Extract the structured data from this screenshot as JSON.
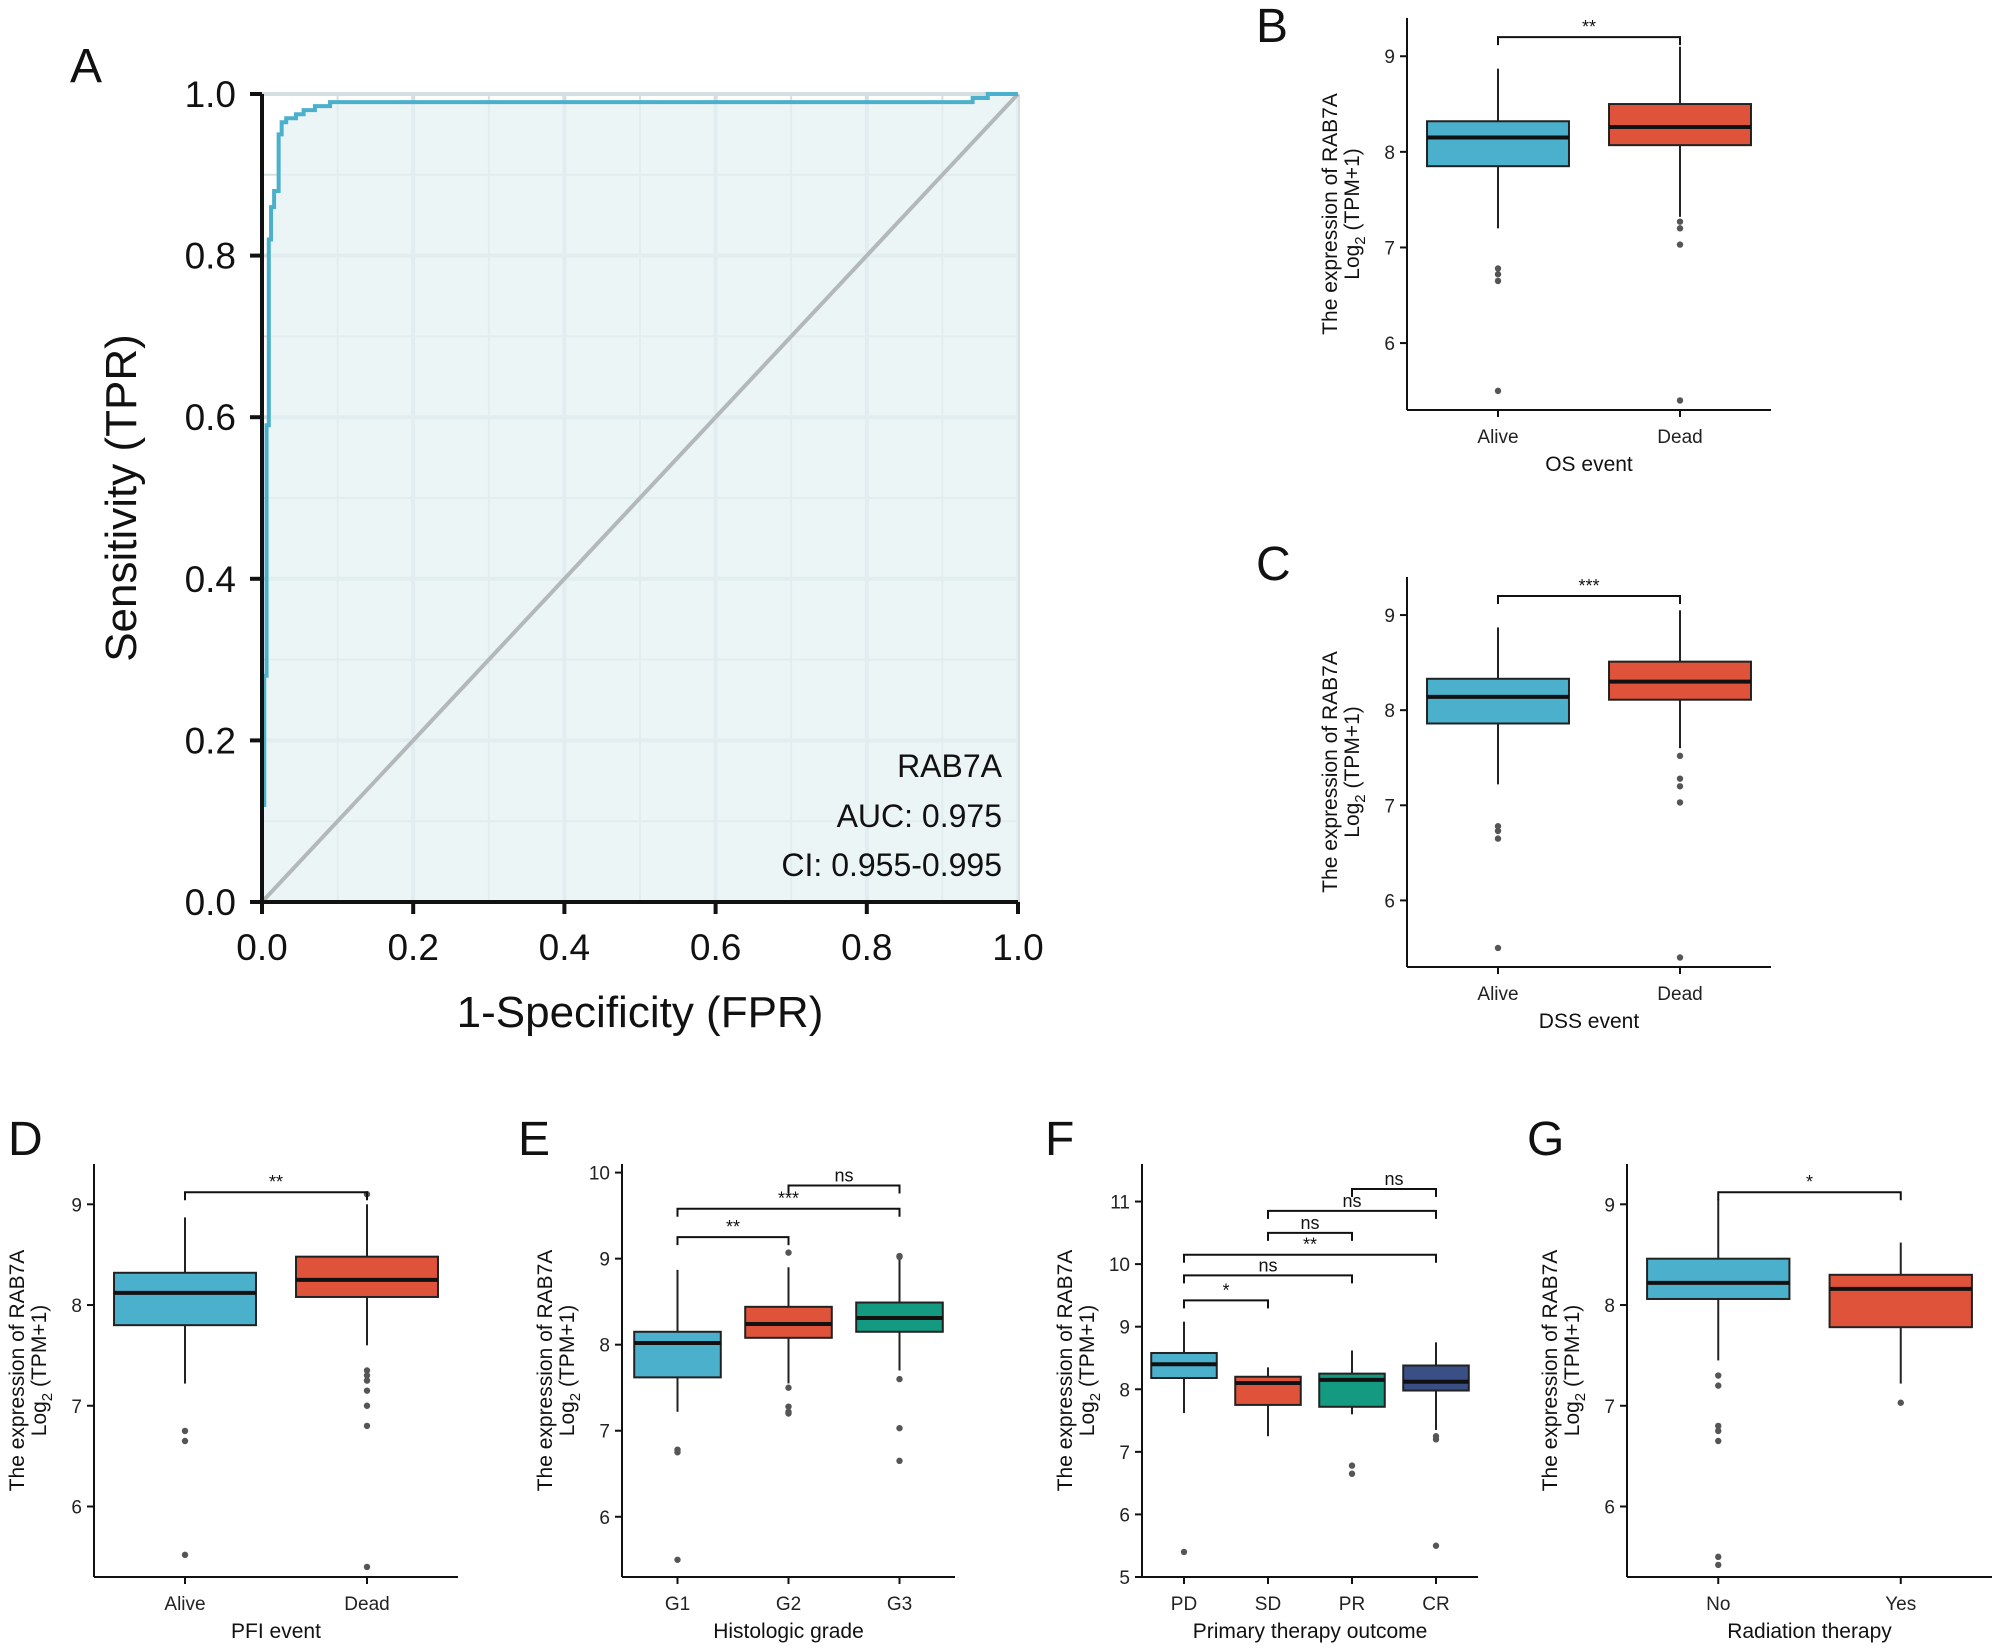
{
  "chart_data": [
    {
      "id": "A",
      "type": "line",
      "panel_label": "A",
      "xlabel": "1-Specificity (FPR)",
      "ylabel": "Sensitivity (TPR)",
      "xlim": [
        0,
        1
      ],
      "ylim": [
        0,
        1
      ],
      "xticks": [
        "0.0",
        "0.2",
        "0.4",
        "0.6",
        "0.8",
        "1.0"
      ],
      "yticks": [
        "0.0",
        "0.2",
        "0.4",
        "0.6",
        "0.8",
        "1.0"
      ],
      "annotation": [
        "RAB7A",
        "AUC: 0.975",
        "CI: 0.955-0.995"
      ],
      "colors": {
        "curve": "#4bb0cc",
        "diagonal": "#b3b9ba",
        "fill": "#e6f1f3",
        "grid": "#d5dfe1"
      },
      "series": [
        {
          "name": "RAB7A",
          "x": [
            0,
            0,
            0.003,
            0.003,
            0.006,
            0.006,
            0.009,
            0.009,
            0.012,
            0.012,
            0.016,
            0.016,
            0.022,
            0.022,
            0.026,
            0.026,
            0.032,
            0.032,
            0.045,
            0.045,
            0.055,
            0.055,
            0.07,
            0.07,
            0.09,
            0.09,
            0.94,
            0.94,
            0.96,
            0.96,
            1.0
          ],
          "y": [
            0,
            0.12,
            0.12,
            0.28,
            0.28,
            0.59,
            0.59,
            0.82,
            0.82,
            0.86,
            0.86,
            0.88,
            0.88,
            0.95,
            0.95,
            0.965,
            0.965,
            0.97,
            0.97,
            0.975,
            0.975,
            0.98,
            0.98,
            0.985,
            0.985,
            0.99,
            0.99,
            0.995,
            0.995,
            1.0,
            1.0
          ]
        },
        {
          "name": "reference",
          "x": [
            0,
            1
          ],
          "y": [
            0,
            1
          ]
        }
      ]
    },
    {
      "id": "B",
      "type": "box",
      "panel_label": "B",
      "xlabel": "OS event",
      "ylabel_line1": "The expression of RAB7A",
      "ylabel_line2_main": "Log",
      "ylabel_line2_sub": "2",
      "ylabel_line2_rest": " (TPM+1)",
      "ylim": [
        5.3,
        9.4
      ],
      "yticks": [
        6,
        7,
        8,
        9
      ],
      "categories": [
        "Alive",
        "Dead"
      ],
      "colors": [
        "#4bb0cc",
        "#e0533b"
      ],
      "boxes": [
        {
          "q1": 7.85,
          "median": 8.15,
          "q3": 8.32,
          "low": 7.2,
          "high": 8.87,
          "outliers": [
            6.78,
            6.72,
            6.65,
            5.5
          ]
        },
        {
          "q1": 8.07,
          "median": 8.26,
          "q3": 8.5,
          "low": 7.32,
          "high": 9.1,
          "outliers": [
            7.27,
            7.2,
            7.03,
            5.4
          ]
        }
      ],
      "comparisons": [
        {
          "from": 0,
          "to": 1,
          "label": "**",
          "y": 9.2
        }
      ]
    },
    {
      "id": "C",
      "type": "box",
      "panel_label": "C",
      "xlabel": "DSS event",
      "ylabel_line1": "The expression of RAB7A",
      "ylabel_line2_main": "Log",
      "ylabel_line2_sub": "2",
      "ylabel_line2_rest": " (TPM+1)",
      "ylim": [
        5.3,
        9.4
      ],
      "yticks": [
        6,
        7,
        8,
        9
      ],
      "categories": [
        "Alive",
        "Dead"
      ],
      "colors": [
        "#4bb0cc",
        "#e0533b"
      ],
      "boxes": [
        {
          "q1": 7.86,
          "median": 8.14,
          "q3": 8.33,
          "low": 7.22,
          "high": 8.87,
          "outliers": [
            6.78,
            6.73,
            6.65,
            5.5
          ]
        },
        {
          "q1": 8.11,
          "median": 8.3,
          "q3": 8.51,
          "low": 7.6,
          "high": 9.05,
          "outliers": [
            7.52,
            7.28,
            7.2,
            7.03,
            5.4
          ]
        }
      ],
      "comparisons": [
        {
          "from": 0,
          "to": 1,
          "label": "***",
          "y": 9.2
        }
      ]
    },
    {
      "id": "D",
      "type": "box",
      "panel_label": "D",
      "xlabel": "PFI event",
      "ylabel_line1": "The expression of RAB7A",
      "ylabel_line2_main": "Log",
      "ylabel_line2_sub": "2",
      "ylabel_line2_rest": " (TPM+1)",
      "ylim": [
        5.3,
        9.4
      ],
      "yticks": [
        6,
        7,
        8,
        9
      ],
      "categories": [
        "Alive",
        "Dead"
      ],
      "colors": [
        "#4bb0cc",
        "#e0533b"
      ],
      "boxes": [
        {
          "q1": 7.8,
          "median": 8.12,
          "q3": 8.32,
          "low": 7.22,
          "high": 8.87,
          "outliers": [
            6.75,
            6.65,
            5.52
          ]
        },
        {
          "q1": 8.08,
          "median": 8.25,
          "q3": 8.48,
          "low": 7.6,
          "high": 9.0,
          "outliers": [
            9.1,
            7.35,
            7.3,
            7.25,
            7.15,
            7.0,
            6.8,
            5.4
          ]
        }
      ],
      "comparisons": [
        {
          "from": 0,
          "to": 1,
          "label": "**",
          "y": 9.12
        }
      ]
    },
    {
      "id": "E",
      "type": "box",
      "panel_label": "E",
      "xlabel": "Histologic grade",
      "ylabel_line1": "The expression of RAB7A",
      "ylabel_line2_main": "Log",
      "ylabel_line2_sub": "2",
      "ylabel_line2_rest": " (TPM+1)",
      "ylim": [
        5.3,
        10.1
      ],
      "yticks": [
        6,
        7,
        8,
        9,
        10
      ],
      "categories": [
        "G1",
        "G2",
        "G3"
      ],
      "colors": [
        "#4bb0cc",
        "#e0533b",
        "#139a80"
      ],
      "boxes": [
        {
          "q1": 7.62,
          "median": 8.02,
          "q3": 8.15,
          "low": 7.22,
          "high": 8.87,
          "outliers": [
            6.78,
            6.75,
            5.5
          ]
        },
        {
          "q1": 8.08,
          "median": 8.24,
          "q3": 8.44,
          "low": 7.55,
          "high": 8.9,
          "outliers": [
            9.07,
            7.5,
            7.28,
            7.22,
            7.2
          ]
        },
        {
          "q1": 8.15,
          "median": 8.31,
          "q3": 8.49,
          "low": 7.7,
          "high": 9.0,
          "outliers": [
            9.03,
            9.02,
            7.6,
            7.03,
            6.65
          ]
        }
      ],
      "comparisons": [
        {
          "from": 0,
          "to": 1,
          "label": "**",
          "y": 9.25
        },
        {
          "from": 0,
          "to": 2,
          "label": "***",
          "y": 9.58
        },
        {
          "from": 1,
          "to": 2,
          "label": "ns",
          "y": 9.85
        }
      ]
    },
    {
      "id": "F",
      "type": "box",
      "panel_label": "F",
      "xlabel": "Primary therapy outcome",
      "ylabel_line1": "The expression of RAB7A",
      "ylabel_line2_main": "Log",
      "ylabel_line2_sub": "2",
      "ylabel_line2_rest": " (TPM+1)",
      "ylim": [
        5,
        11.6
      ],
      "yticks": [
        5,
        6,
        7,
        8,
        9,
        10,
        11
      ],
      "categories": [
        "PD",
        "SD",
        "PR",
        "CR"
      ],
      "colors": [
        "#4bb0cc",
        "#e0533b",
        "#139a80",
        "#3a4f86"
      ],
      "boxes": [
        {
          "q1": 8.18,
          "median": 8.4,
          "q3": 8.58,
          "low": 7.62,
          "high": 9.08,
          "outliers": [
            5.4
          ]
        },
        {
          "q1": 7.75,
          "median": 8.1,
          "q3": 8.2,
          "low": 7.25,
          "high": 8.35,
          "outliers": []
        },
        {
          "q1": 7.72,
          "median": 8.15,
          "q3": 8.25,
          "low": 7.6,
          "high": 8.62,
          "outliers": [
            6.78,
            6.65
          ]
        },
        {
          "q1": 7.98,
          "median": 8.12,
          "q3": 8.38,
          "low": 7.35,
          "high": 8.75,
          "outliers": [
            7.25,
            7.2,
            5.5
          ]
        }
      ],
      "comparisons": [
        {
          "from": 0,
          "to": 1,
          "label": "*",
          "y": 9.42
        },
        {
          "from": 0,
          "to": 2,
          "label": "ns",
          "y": 9.82
        },
        {
          "from": 0,
          "to": 3,
          "label": "**",
          "y": 10.15
        },
        {
          "from": 1,
          "to": 2,
          "label": "ns",
          "y": 10.5
        },
        {
          "from": 1,
          "to": 3,
          "label": "ns",
          "y": 10.85
        },
        {
          "from": 2,
          "to": 3,
          "label": "ns",
          "y": 11.2
        }
      ]
    },
    {
      "id": "G",
      "type": "box",
      "panel_label": "G",
      "xlabel": "Radiation therapy",
      "ylabel_line1": "The expression of RAB7A",
      "ylabel_line2_main": "Log",
      "ylabel_line2_sub": "2",
      "ylabel_line2_rest": " (TPM+1)",
      "ylim": [
        5.3,
        9.4
      ],
      "yticks": [
        6,
        7,
        8,
        9
      ],
      "categories": [
        "No",
        "Yes"
      ],
      "colors": [
        "#4bb0cc",
        "#e0533b"
      ],
      "boxes": [
        {
          "q1": 8.06,
          "median": 8.22,
          "q3": 8.46,
          "low": 7.45,
          "high": 9.05,
          "outliers": [
            7.3,
            7.2,
            6.8,
            6.75,
            6.65,
            5.5,
            5.42
          ]
        },
        {
          "q1": 7.78,
          "median": 8.16,
          "q3": 8.3,
          "low": 7.22,
          "high": 8.62,
          "outliers": [
            7.03
          ]
        }
      ],
      "comparisons": [
        {
          "from": 0,
          "to": 1,
          "label": "*",
          "y": 9.12
        }
      ]
    }
  ]
}
